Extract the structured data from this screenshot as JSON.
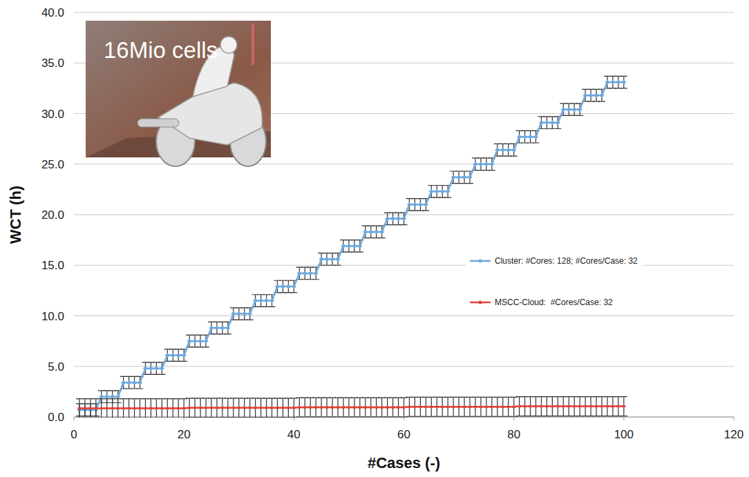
{
  "chart_data": {
    "type": "line",
    "xlabel": "#Cases (-)",
    "ylabel": "WCT (h)",
    "annotations": [
      "16Mio cells"
    ],
    "x": [
      1,
      2,
      3,
      4,
      5,
      6,
      7,
      8,
      9,
      10,
      11,
      12,
      13,
      14,
      15,
      16,
      17,
      18,
      19,
      20,
      21,
      22,
      23,
      24,
      25,
      26,
      27,
      28,
      29,
      30,
      31,
      32,
      33,
      34,
      35,
      36,
      37,
      38,
      39,
      40,
      41,
      42,
      43,
      44,
      45,
      46,
      47,
      48,
      49,
      50,
      51,
      52,
      53,
      54,
      55,
      56,
      57,
      58,
      59,
      60,
      61,
      62,
      63,
      64,
      65,
      66,
      67,
      68,
      69,
      70,
      71,
      72,
      73,
      74,
      75,
      76,
      77,
      78,
      79,
      80,
      81,
      82,
      83,
      84,
      85,
      86,
      87,
      88,
      89,
      90,
      91,
      92,
      93,
      94,
      95,
      96,
      97,
      98,
      99,
      100
    ],
    "series": [
      {
        "name": "Cluster: #Cores: 128; #Cores/Case: 32",
        "color": "#6fa8dc",
        "marker": "diamond",
        "line_style": "solid",
        "values": [
          0.7,
          0.7,
          0.7,
          0.7,
          2.0,
          2.0,
          2.0,
          2.0,
          3.4,
          3.4,
          3.4,
          3.4,
          4.8,
          4.8,
          4.8,
          4.8,
          6.1,
          6.1,
          6.1,
          6.1,
          7.5,
          7.5,
          7.5,
          7.5,
          8.8,
          8.8,
          8.8,
          8.8,
          10.2,
          10.2,
          10.2,
          10.2,
          11.5,
          11.5,
          11.5,
          11.5,
          12.9,
          12.9,
          12.9,
          12.9,
          14.2,
          14.2,
          14.2,
          14.2,
          15.6,
          15.6,
          15.6,
          15.6,
          16.9,
          16.9,
          16.9,
          16.9,
          18.3,
          18.3,
          18.3,
          18.3,
          19.6,
          19.6,
          19.6,
          19.6,
          21.0,
          21.0,
          21.0,
          21.0,
          22.3,
          22.3,
          22.3,
          22.3,
          23.7,
          23.7,
          23.7,
          23.7,
          25.0,
          25.0,
          25.0,
          25.0,
          26.4,
          26.4,
          26.4,
          26.4,
          27.7,
          27.7,
          27.7,
          27.7,
          29.1,
          29.1,
          29.1,
          29.1,
          30.4,
          30.4,
          30.4,
          30.4,
          31.8,
          31.8,
          31.8,
          31.8,
          33.1,
          33.1,
          33.1,
          33.1
        ],
        "error": 0.6
      },
      {
        "name": "MSCC-Cloud:  #Cores/Case: 32",
        "color": "#e0433a",
        "marker": "dash",
        "line_style": "solid",
        "values": [
          0.85,
          0.85,
          0.85,
          0.85,
          0.85,
          0.85,
          0.85,
          0.85,
          0.85,
          0.85,
          0.85,
          0.85,
          0.85,
          0.85,
          0.85,
          0.85,
          0.85,
          0.85,
          0.85,
          0.85,
          0.9,
          0.9,
          0.9,
          0.9,
          0.9,
          0.9,
          0.9,
          0.9,
          0.9,
          0.9,
          0.9,
          0.9,
          0.9,
          0.9,
          0.9,
          0.9,
          0.9,
          0.9,
          0.9,
          0.9,
          0.95,
          0.95,
          0.95,
          0.95,
          0.95,
          0.95,
          0.95,
          0.95,
          0.95,
          0.95,
          0.95,
          0.95,
          0.95,
          0.95,
          0.95,
          0.95,
          0.95,
          0.95,
          0.95,
          0.95,
          1.0,
          1.0,
          1.0,
          1.0,
          1.0,
          1.0,
          1.0,
          1.0,
          1.0,
          1.0,
          1.0,
          1.0,
          1.0,
          1.0,
          1.0,
          1.0,
          1.0,
          1.0,
          1.0,
          1.0,
          1.05,
          1.05,
          1.05,
          1.05,
          1.05,
          1.05,
          1.05,
          1.05,
          1.05,
          1.05,
          1.05,
          1.05,
          1.05,
          1.05,
          1.05,
          1.05,
          1.05,
          1.05,
          1.05,
          1.05
        ],
        "error": 0.95
      }
    ],
    "xlim": [
      0,
      120
    ],
    "xticks": [
      0,
      20,
      40,
      60,
      80,
      100,
      120
    ],
    "ylim": [
      0,
      40
    ],
    "yticks": [
      {
        "value": 0,
        "label": "0.0"
      },
      {
        "value": 5,
        "label": "5.0"
      },
      {
        "value": 10,
        "label": "10.0"
      },
      {
        "value": 15,
        "label": "15.0"
      },
      {
        "value": 20,
        "label": "20.0"
      },
      {
        "value": 25,
        "label": "25.0"
      },
      {
        "value": 30,
        "label": "30.0"
      },
      {
        "value": 35,
        "label": "35.0"
      },
      {
        "value": 40,
        "label": "40.0"
      }
    ],
    "grid": true,
    "legend": "right"
  }
}
